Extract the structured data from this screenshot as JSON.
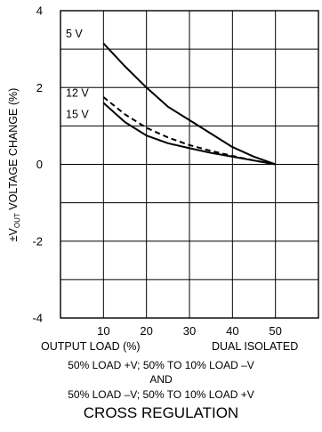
{
  "chart_data": {
    "type": "line",
    "title": "CROSS REGULATION",
    "ylabel_prefix": "±V",
    "ylabel_sub": "OUT",
    "ylabel_rest": " VOLTAGE CHANGE (%)",
    "xlabel": "OUTPUT LOAD (%)",
    "xlabel_right": "DUAL ISOLATED",
    "caption_lines": [
      "50% LOAD +V; 50% TO 10% LOAD –V",
      "AND",
      "50% LOAD –V; 50% TO 10% LOAD +V"
    ],
    "xlim": [
      0,
      60
    ],
    "ylim": [
      -4,
      4
    ],
    "xticks": [
      10,
      20,
      30,
      40,
      50
    ],
    "yticks": [
      4,
      2,
      0,
      -2,
      -4
    ],
    "grid": true,
    "series": [
      {
        "name": "5 V",
        "style": "solid",
        "x": [
          10,
          15,
          20,
          25,
          30,
          35,
          40,
          45,
          50
        ],
        "y": [
          3.15,
          2.55,
          2.0,
          1.5,
          1.15,
          0.8,
          0.45,
          0.2,
          0.0
        ]
      },
      {
        "name": "12 V",
        "style": "dashed",
        "x": [
          10,
          15,
          20,
          25,
          30,
          35,
          40,
          45,
          50
        ],
        "y": [
          1.75,
          1.3,
          0.95,
          0.7,
          0.5,
          0.35,
          0.22,
          0.1,
          0.0
        ]
      },
      {
        "name": "15 V",
        "style": "solid",
        "x": [
          10,
          15,
          20,
          25,
          30,
          35,
          40,
          45,
          50
        ],
        "y": [
          1.6,
          1.1,
          0.75,
          0.55,
          0.42,
          0.3,
          0.2,
          0.1,
          0.0
        ]
      }
    ]
  }
}
